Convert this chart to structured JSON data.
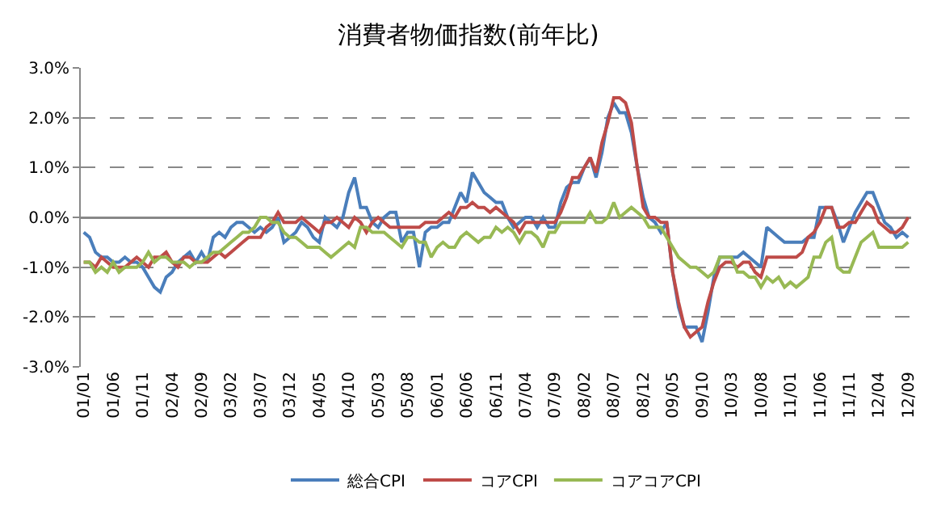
{
  "chart_data": {
    "type": "line",
    "title": "消費者物価指数(前年比)",
    "categories": [
      "01/01",
      null,
      null,
      null,
      null,
      "01/06",
      null,
      null,
      null,
      null,
      "01/11",
      null,
      null,
      null,
      null,
      "02/04",
      null,
      null,
      null,
      null,
      "02/09",
      null,
      null,
      null,
      null,
      "03/02",
      null,
      null,
      null,
      null,
      "03/07",
      null,
      null,
      null,
      null,
      "03/12",
      null,
      null,
      null,
      null,
      "04/05",
      null,
      null,
      null,
      null,
      "04/10",
      null,
      null,
      null,
      null,
      "05/03",
      null,
      null,
      null,
      null,
      "05/08",
      null,
      null,
      null,
      null,
      "06/01",
      null,
      null,
      null,
      null,
      "06/06",
      null,
      null,
      null,
      null,
      "06/11",
      null,
      null,
      null,
      null,
      "07/04",
      null,
      null,
      null,
      null,
      "07/09",
      null,
      null,
      null,
      null,
      "08/02",
      null,
      null,
      null,
      null,
      "08/07",
      null,
      null,
      null,
      null,
      "08/12",
      null,
      null,
      null,
      null,
      "09/05",
      null,
      null,
      null,
      null,
      "09/10",
      null,
      null,
      null,
      null,
      "10/03",
      null,
      null,
      null,
      null,
      "10/08",
      null,
      null,
      null,
      null,
      "11/01",
      null,
      null,
      null,
      null,
      "11/06",
      null,
      null,
      null,
      null,
      "11/11",
      null,
      null,
      null,
      null,
      "12/04",
      null,
      null,
      null,
      null,
      "12/09"
    ],
    "series": [
      {
        "name": "総合CPI",
        "color": "#4a7ebb",
        "values": [
          -0.3,
          -0.4,
          -0.7,
          -0.8,
          -0.8,
          -0.9,
          -0.9,
          -0.8,
          -0.9,
          -0.9,
          -1.0,
          -1.2,
          -1.4,
          -1.5,
          -1.2,
          -1.1,
          -0.9,
          -0.8,
          -0.7,
          -0.9,
          -0.7,
          -0.9,
          -0.4,
          -0.3,
          -0.4,
          -0.2,
          -0.1,
          -0.1,
          -0.2,
          -0.3,
          -0.2,
          -0.3,
          -0.2,
          0.0,
          -0.5,
          -0.4,
          -0.3,
          -0.1,
          -0.2,
          -0.4,
          -0.5,
          0.0,
          -0.1,
          -0.2,
          0.0,
          0.5,
          0.8,
          0.2,
          0.2,
          -0.1,
          -0.2,
          0.0,
          0.1,
          0.1,
          -0.5,
          -0.3,
          -0.3,
          -1.0,
          -0.3,
          -0.2,
          -0.2,
          -0.1,
          -0.1,
          0.2,
          0.5,
          0.3,
          0.9,
          0.7,
          0.5,
          0.4,
          0.3,
          0.3,
          0.0,
          -0.2,
          -0.1,
          0.0,
          0.0,
          -0.2,
          0.0,
          -0.2,
          -0.2,
          0.3,
          0.6,
          0.7,
          0.7,
          1.0,
          1.2,
          0.8,
          1.3,
          2.0,
          2.3,
          2.1,
          2.1,
          1.7,
          1.0,
          0.4,
          0.0,
          -0.1,
          -0.3,
          -0.1,
          -1.1,
          -1.8,
          -2.2,
          -2.2,
          -2.2,
          -2.5,
          -1.9,
          -1.2,
          -0.8,
          -0.8,
          -0.8,
          -0.8,
          -0.7,
          -0.8,
          -0.9,
          -1.0,
          -0.2,
          -0.3,
          -0.4,
          -0.5,
          -0.5,
          -0.5,
          -0.5,
          -0.4,
          -0.4,
          0.2,
          0.2,
          0.2,
          -0.1,
          -0.5,
          -0.2,
          0.1,
          0.3,
          0.5,
          0.5,
          0.2,
          -0.1,
          -0.2,
          -0.4,
          -0.3,
          -0.4
        ]
      },
      {
        "name": "コアCPI",
        "color": "#be4b48",
        "values": [
          -0.9,
          -0.9,
          -1.0,
          -0.8,
          -0.9,
          -1.0,
          -1.0,
          -1.0,
          -0.9,
          -0.8,
          -0.9,
          -1.0,
          -0.8,
          -0.8,
          -0.7,
          -0.9,
          -1.0,
          -0.8,
          -0.8,
          -0.9,
          -0.9,
          -0.9,
          -0.8,
          -0.7,
          -0.8,
          -0.7,
          -0.6,
          -0.5,
          -0.4,
          -0.4,
          -0.4,
          -0.2,
          -0.1,
          0.1,
          -0.1,
          -0.1,
          -0.1,
          0.0,
          -0.1,
          -0.2,
          -0.3,
          -0.1,
          -0.1,
          0.0,
          -0.1,
          -0.2,
          0.0,
          -0.1,
          -0.3,
          -0.1,
          0.0,
          -0.1,
          -0.2,
          -0.2,
          -0.2,
          -0.2,
          -0.2,
          -0.2,
          -0.1,
          -0.1,
          -0.1,
          0.0,
          0.1,
          0.0,
          0.2,
          0.2,
          0.3,
          0.2,
          0.2,
          0.1,
          0.2,
          0.1,
          0.0,
          -0.1,
          -0.3,
          -0.1,
          -0.1,
          -0.1,
          -0.1,
          -0.1,
          -0.1,
          0.1,
          0.4,
          0.8,
          0.8,
          1.0,
          1.2,
          0.9,
          1.5,
          1.9,
          2.4,
          2.4,
          2.3,
          1.9,
          1.0,
          0.2,
          0.0,
          0.0,
          -0.1,
          -0.1,
          -1.1,
          -1.7,
          -2.2,
          -2.4,
          -2.3,
          -2.2,
          -1.7,
          -1.3,
          -1.0,
          -0.9,
          -0.9,
          -1.0,
          -0.9,
          -0.9,
          -1.1,
          -1.2,
          -0.8,
          -0.8,
          -0.8,
          -0.8,
          -0.8,
          -0.8,
          -0.7,
          -0.4,
          -0.3,
          -0.1,
          0.2,
          0.2,
          -0.2,
          -0.2,
          -0.1,
          -0.1,
          0.1,
          0.3,
          0.2,
          -0.1,
          -0.2,
          -0.3,
          -0.3,
          -0.2,
          0.0
        ]
      },
      {
        "name": "コアコアCPI",
        "color": "#98b954",
        "values": [
          -0.9,
          -0.9,
          -1.1,
          -1.0,
          -1.1,
          -0.9,
          -1.1,
          -1.0,
          -1.0,
          -1.0,
          -0.9,
          -0.7,
          -0.9,
          -0.8,
          -0.8,
          -0.9,
          -0.9,
          -0.9,
          -1.0,
          -0.9,
          -0.9,
          -0.8,
          -0.7,
          -0.7,
          -0.6,
          -0.5,
          -0.4,
          -0.3,
          -0.3,
          -0.2,
          0.0,
          0.0,
          -0.1,
          -0.1,
          -0.3,
          -0.4,
          -0.4,
          -0.5,
          -0.6,
          -0.6,
          -0.6,
          -0.7,
          -0.8,
          -0.7,
          -0.6,
          -0.5,
          -0.6,
          -0.2,
          -0.2,
          -0.3,
          -0.3,
          -0.3,
          -0.4,
          -0.5,
          -0.6,
          -0.4,
          -0.4,
          -0.5,
          -0.5,
          -0.8,
          -0.6,
          -0.5,
          -0.6,
          -0.6,
          -0.4,
          -0.3,
          -0.4,
          -0.5,
          -0.4,
          -0.4,
          -0.2,
          -0.3,
          -0.2,
          -0.3,
          -0.5,
          -0.3,
          -0.3,
          -0.4,
          -0.6,
          -0.3,
          -0.3,
          -0.1,
          -0.1,
          -0.1,
          -0.1,
          -0.1,
          0.1,
          -0.1,
          -0.1,
          0.0,
          0.3,
          0.0,
          0.1,
          0.2,
          0.1,
          0.0,
          -0.2,
          -0.2,
          -0.2,
          -0.4,
          -0.6,
          -0.8,
          -0.9,
          -1.0,
          -1.0,
          -1.1,
          -1.2,
          -1.1,
          -0.8,
          -0.8,
          -0.8,
          -1.1,
          -1.1,
          -1.2,
          -1.2,
          -1.4,
          -1.2,
          -1.3,
          -1.2,
          -1.4,
          -1.3,
          -1.4,
          -1.3,
          -1.2,
          -0.8,
          -0.8,
          -0.5,
          -0.4,
          -1.0,
          -1.1,
          -1.1,
          -0.8,
          -0.5,
          -0.4,
          -0.3,
          -0.6,
          -0.6,
          -0.6,
          -0.6,
          -0.6,
          -0.5
        ]
      }
    ],
    "ylim": [
      -3,
      3
    ],
    "yticks": [
      {
        "value": -3,
        "label": "-3.0%"
      },
      {
        "value": -2,
        "label": "-2.0%"
      },
      {
        "value": -1,
        "label": "-1.0%"
      },
      {
        "value": 0,
        "label": "0.0%"
      },
      {
        "value": 1,
        "label": "1.0%"
      },
      {
        "value": 2,
        "label": "2.0%"
      },
      {
        "value": 3,
        "label": "3.0%"
      }
    ],
    "grid": "y",
    "legend": "bottom",
    "line_style": "solid"
  }
}
